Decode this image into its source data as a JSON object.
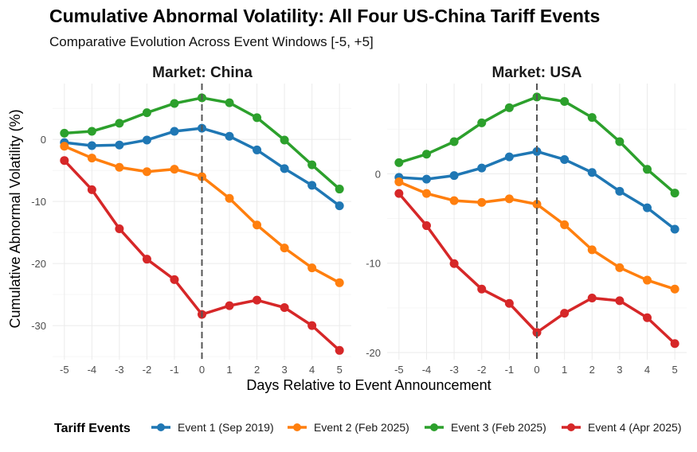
{
  "chart_data": {
    "type": "line",
    "title": "Cumulative Abnormal Volatility: All Four US-China Tariff Events",
    "subtitle": "Comparative Evolution Across Event Windows [-5, +5]",
    "xlabel": "Days Relative to Event Announcement",
    "ylabel": "Cumulative Abnormal Volatility (%)",
    "x": [
      -5,
      -4,
      -3,
      -2,
      -1,
      0,
      1,
      2,
      3,
      4,
      5
    ],
    "x_ticks": [
      "-5",
      "-4",
      "-3",
      "-2",
      "-1",
      "0",
      "1",
      "2",
      "3",
      "4",
      "5"
    ],
    "reference_line": {
      "x": 0,
      "style": "dashed"
    },
    "grid": true,
    "legend": {
      "title": "Tariff Events",
      "placement": "bottom",
      "entries": [
        {
          "name": "Event 1 (Sep 2019)",
          "color": "#1f77b4"
        },
        {
          "name": "Event 2 (Feb 2025)",
          "color": "#ff7f0e"
        },
        {
          "name": "Event 3 (Feb 2025)",
          "color": "#2ca02c"
        },
        {
          "name": "Event 4 (Apr 2025)",
          "color": "#d62728"
        }
      ]
    },
    "panels": [
      {
        "label": "Market: China",
        "ylim": [
          -35.5,
          9
        ],
        "y_ticks": [
          0,
          -10,
          -20,
          -30
        ],
        "y_tick_labels": [
          "0",
          "-10",
          "-20",
          "-30"
        ],
        "series": [
          {
            "name": "Event 1 (Sep 2019)",
            "values": [
              -0.5,
              -1.0,
              -0.9,
              -0.1,
              1.3,
              1.8,
              0.5,
              -1.7,
              -4.7,
              -7.4,
              -10.7
            ]
          },
          {
            "name": "Event 2 (Feb 2025)",
            "values": [
              -1.1,
              -3.0,
              -4.5,
              -5.2,
              -4.8,
              -6.0,
              -9.5,
              -13.8,
              -17.5,
              -20.7,
              -23.1
            ]
          },
          {
            "name": "Event 3 (Feb 2025)",
            "values": [
              1.0,
              1.3,
              2.6,
              4.3,
              5.8,
              6.7,
              5.9,
              3.5,
              -0.1,
              -4.1,
              -8.0
            ]
          },
          {
            "name": "Event 4 (Apr 2025)",
            "values": [
              -3.4,
              -8.1,
              -14.4,
              -19.3,
              -22.6,
              -28.2,
              -26.8,
              -25.9,
              -27.1,
              -30.0,
              -34.0
            ]
          }
        ]
      },
      {
        "label": "Market: USA",
        "ylim": [
          -20.8,
          10.1
        ],
        "y_ticks": [
          0,
          -10,
          -20
        ],
        "y_tick_labels": [
          "0",
          "-10",
          "-20"
        ],
        "series": [
          {
            "name": "Event 1 (Sep 2019)",
            "values": [
              -0.4,
              -0.6,
              -0.2,
              0.65,
              1.9,
              2.5,
              1.6,
              0.15,
              -1.95,
              -3.8,
              -6.2
            ]
          },
          {
            "name": "Event 2 (Feb 2025)",
            "values": [
              -0.9,
              -2.2,
              -3.0,
              -3.2,
              -2.8,
              -3.4,
              -5.7,
              -8.5,
              -10.5,
              -11.9,
              -12.9
            ]
          },
          {
            "name": "Event 3 (Feb 2025)",
            "values": [
              1.25,
              2.2,
              3.6,
              5.7,
              7.4,
              8.6,
              8.1,
              6.3,
              3.6,
              0.5,
              -2.15
            ]
          },
          {
            "name": "Event 4 (Apr 2025)",
            "values": [
              -2.2,
              -5.8,
              -10.05,
              -12.9,
              -14.5,
              -17.75,
              -15.6,
              -13.9,
              -14.2,
              -16.1,
              -19.0
            ]
          }
        ]
      }
    ]
  }
}
